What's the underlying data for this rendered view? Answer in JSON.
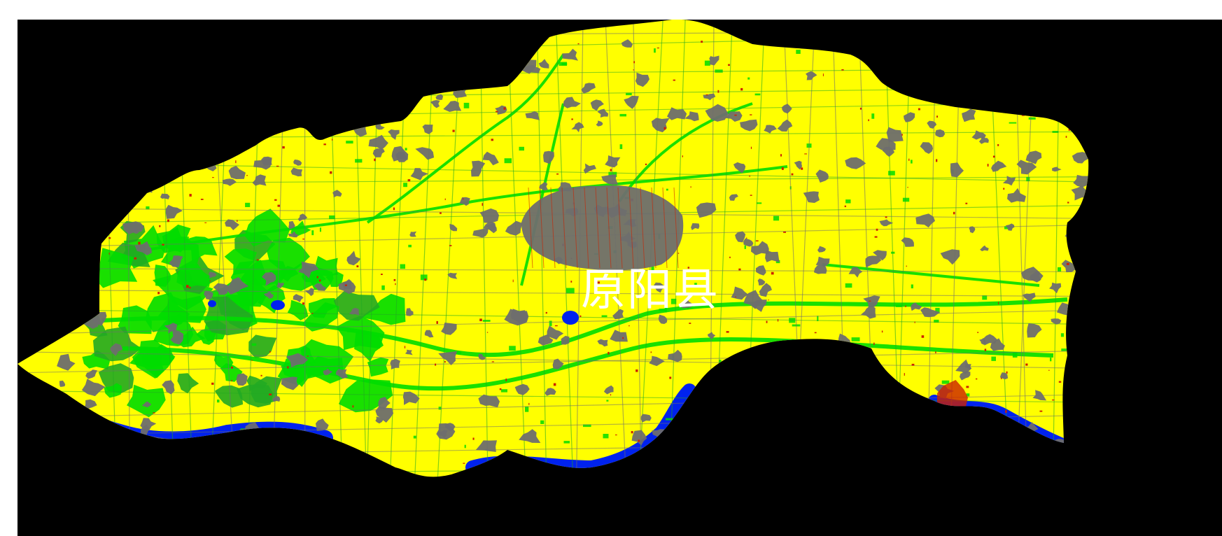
{
  "map": {
    "region_label": "原阳县",
    "colors": {
      "background": "#000000",
      "cropland": "#ffff00",
      "forest": "#00dd00",
      "grass": "#22aa22",
      "built_up": "#6e6e6e",
      "water": "#0022ee",
      "bare_red": "#cc2200",
      "label": "#ffffff"
    }
  }
}
